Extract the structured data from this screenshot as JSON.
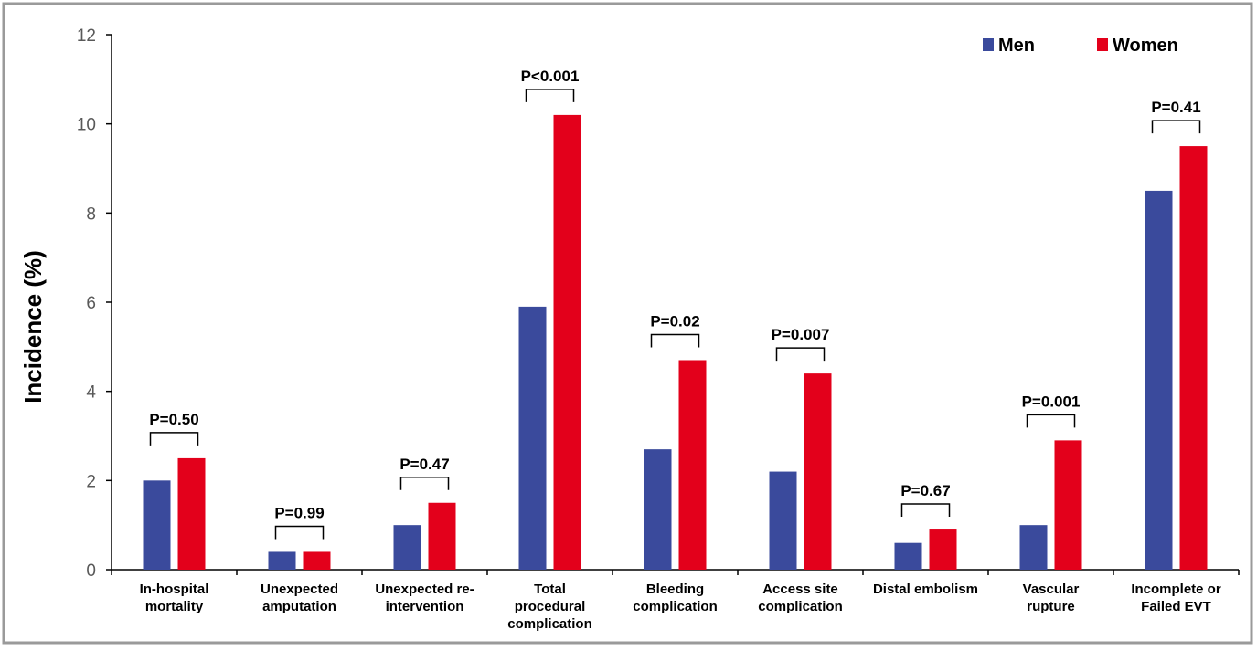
{
  "chart_data": {
    "type": "bar",
    "ylabel": "Incidence (%)",
    "ylim": [
      0,
      12
    ],
    "yticks": [
      0,
      2,
      4,
      6,
      8,
      10,
      12
    ],
    "legend_position": "top-right",
    "categories": [
      [
        "In-hospital",
        "mortality"
      ],
      [
        "Unexpected",
        "amputation"
      ],
      [
        "Unexpected re-",
        "intervention"
      ],
      [
        "Total",
        "procedural",
        "complication"
      ],
      [
        "Bleeding",
        "complication"
      ],
      [
        "Access site",
        "complication"
      ],
      [
        "Distal embolism"
      ],
      [
        "Vascular",
        "rupture"
      ],
      [
        "Incomplete or",
        "Failed EVT"
      ]
    ],
    "series": [
      {
        "name": "Men",
        "color": "#3A4A9C",
        "values": [
          2.0,
          0.4,
          1.0,
          5.9,
          2.7,
          2.2,
          0.6,
          1.0,
          8.5
        ]
      },
      {
        "name": "Women",
        "color": "#E3001B",
        "values": [
          2.5,
          0.4,
          1.5,
          10.2,
          4.7,
          4.4,
          0.9,
          2.9,
          9.5
        ]
      }
    ],
    "annotations": [
      "P=0.50",
      "P=0.99",
      "P=0.47",
      "P<0.001",
      "P=0.02",
      "P=0.007",
      "P=0.67",
      "P=0.001",
      "P=0.41"
    ]
  }
}
